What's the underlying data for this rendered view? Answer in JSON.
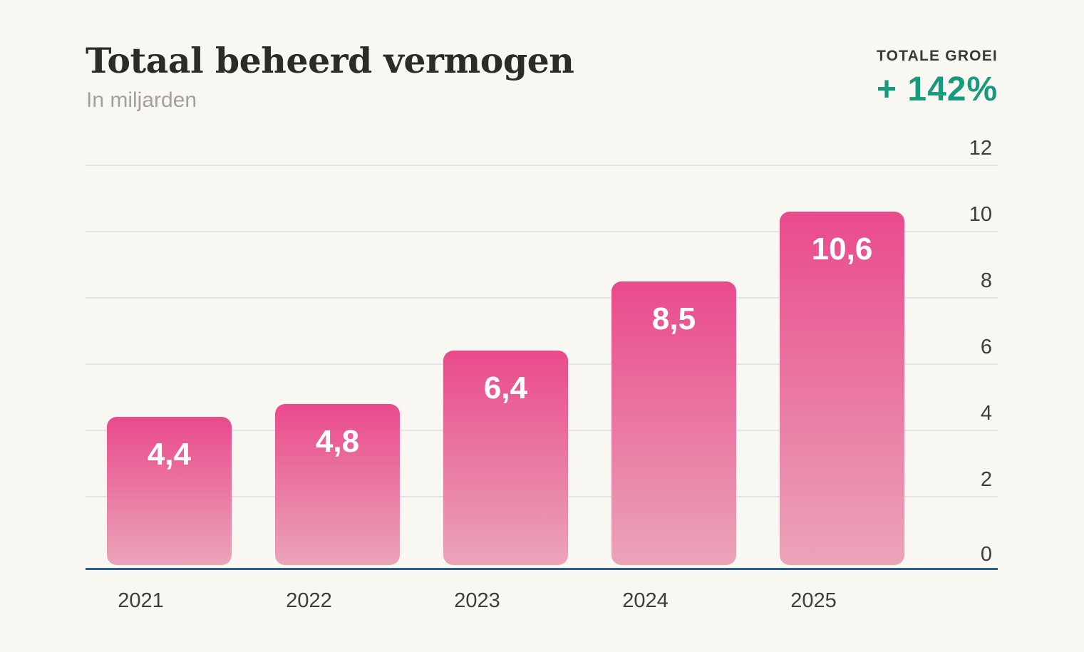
{
  "header": {
    "title": "Totaal beheerd vermogen",
    "subtitle": "In miljarden"
  },
  "growth": {
    "label": "TOTALE GROEI",
    "value": "+ 142%"
  },
  "colors": {
    "background": "#f9f7f1",
    "accent_teal": "#189a7e",
    "bar_gradient_top": "#e94a8c",
    "bar_gradient_bottom": "#eba4b9",
    "gridline": "#e2e4ea",
    "axis_line": "#2b5c8c",
    "text_dark": "#2d2b28",
    "text_muted": "#a5a19a",
    "tick_text": "#3f3d39",
    "bar_value_text": "#ffffff"
  },
  "chart_data": {
    "type": "bar",
    "title": "Totaal beheerd vermogen",
    "subtitle": "In miljarden",
    "categories": [
      "2021",
      "2022",
      "2023",
      "2024",
      "2025"
    ],
    "values": [
      4.4,
      4.8,
      6.4,
      8.5,
      10.6
    ],
    "value_labels": [
      "4,4",
      "4,8",
      "6,4",
      "8,5",
      "10,6"
    ],
    "xlabel": "",
    "ylabel": "",
    "ylim": [
      0,
      12
    ],
    "yticks": [
      0,
      2,
      4,
      6,
      8,
      10,
      12
    ],
    "grid": "horizontal",
    "legend": "none",
    "annotations": {
      "total_growth": "+ 142%"
    }
  }
}
